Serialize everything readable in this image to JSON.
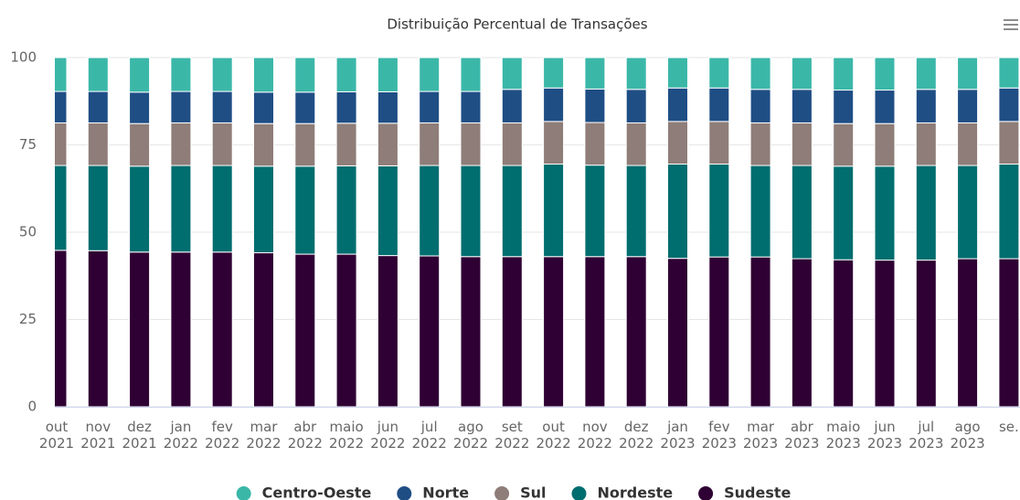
{
  "chart_data": {
    "type": "stacked_bar_percent",
    "title": "Distribuição Percentual de Transações",
    "categories": [
      [
        "out",
        "2021"
      ],
      [
        "nov",
        "2021"
      ],
      [
        "dez",
        "2021"
      ],
      [
        "jan",
        "2022"
      ],
      [
        "fev",
        "2022"
      ],
      [
        "mar",
        "2022"
      ],
      [
        "abr",
        "2022"
      ],
      [
        "maio",
        "2022"
      ],
      [
        "jun",
        "2022"
      ],
      [
        "jul",
        "2022"
      ],
      [
        "ago",
        "2022"
      ],
      [
        "set",
        "2022"
      ],
      [
        "out",
        "2022"
      ],
      [
        "nov",
        "2022"
      ],
      [
        "dez",
        "2022"
      ],
      [
        "jan",
        "2023"
      ],
      [
        "fev",
        "2023"
      ],
      [
        "mar",
        "2023"
      ],
      [
        "abr",
        "2023"
      ],
      [
        "maio",
        "2023"
      ],
      [
        "jun",
        "2023"
      ],
      [
        "jul",
        "2023"
      ],
      [
        "ago",
        "2023"
      ],
      [
        "se."
      ]
    ],
    "series": [
      {
        "name": "Centro-Oeste",
        "color": "#3bb7a8",
        "values": [
          9.7,
          9.7,
          9.9,
          9.7,
          9.7,
          9.9,
          9.9,
          9.8,
          9.8,
          9.7,
          9.7,
          9.1,
          8.7,
          9.0,
          9.1,
          8.7,
          8.7,
          9.1,
          9.1,
          9.3,
          9.3,
          9.1,
          9.1,
          8.7
        ]
      },
      {
        "name": "Norte",
        "color": "#1f4e85",
        "values": [
          9.0,
          9.0,
          9.0,
          9.0,
          9.0,
          9.0,
          9.0,
          9.0,
          9.0,
          9.0,
          9.0,
          9.6,
          9.6,
          9.6,
          9.6,
          9.6,
          9.6,
          9.6,
          9.6,
          9.6,
          9.6,
          9.6,
          9.6,
          9.6
        ]
      },
      {
        "name": "Sul",
        "color": "#8e7d78",
        "values": [
          12.2,
          12.2,
          12.2,
          12.2,
          12.2,
          12.2,
          12.2,
          12.2,
          12.2,
          12.2,
          12.2,
          12.2,
          12.2,
          12.2,
          12.2,
          12.2,
          12.2,
          12.2,
          12.2,
          12.2,
          12.2,
          12.2,
          12.2,
          12.2
        ]
      },
      {
        "name": "Nordeste",
        "color": "#006d6f",
        "values": [
          24.3,
          24.4,
          24.6,
          24.8,
          24.8,
          24.8,
          25.2,
          25.3,
          25.7,
          25.9,
          26.1,
          26.1,
          26.5,
          26.2,
          26.1,
          27.0,
          26.6,
          26.2,
          26.7,
          26.8,
          26.9,
          27.1,
          26.7,
          27.1
        ]
      },
      {
        "name": "Sudeste",
        "color": "#2f0033",
        "values": [
          44.8,
          44.7,
          44.3,
          44.3,
          44.3,
          44.1,
          43.7,
          43.7,
          43.3,
          43.2,
          43.0,
          43.0,
          43.0,
          43.0,
          43.0,
          42.5,
          42.9,
          42.9,
          42.4,
          42.1,
          42.0,
          42.0,
          42.4,
          42.4
        ]
      }
    ],
    "ylim": [
      0,
      100
    ],
    "yticks": [
      0,
      25,
      50,
      75,
      100
    ],
    "grid": true,
    "legend": "bottom"
  }
}
